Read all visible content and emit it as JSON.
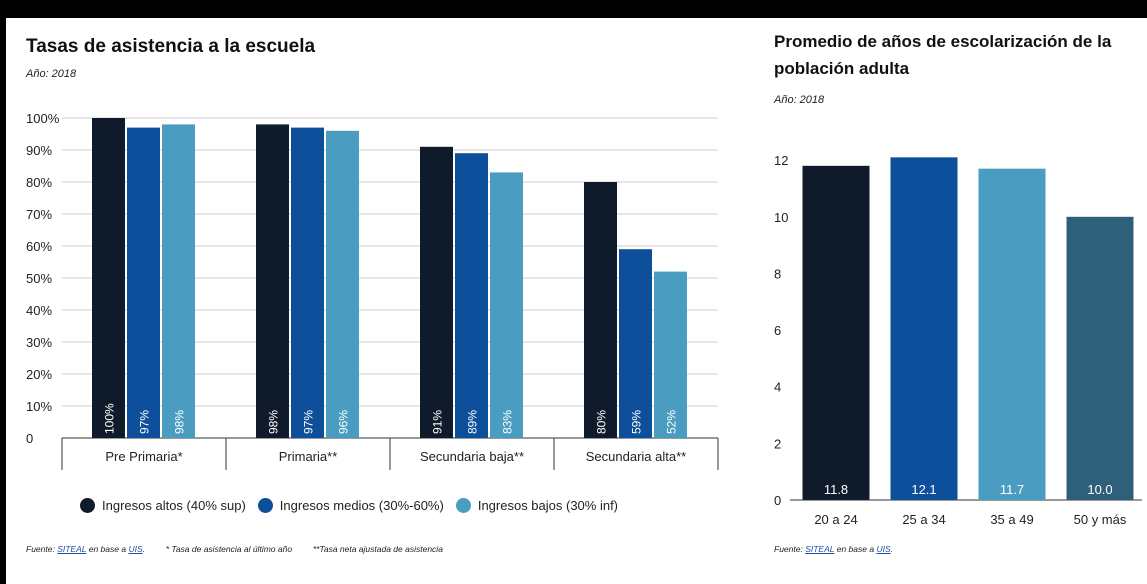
{
  "colors": {
    "high": "#0f1a2b",
    "mid": "#0d4f9a",
    "low": "#4a9cc0",
    "older": "#2e6079",
    "grid": "#cccccc",
    "axis": "#333333"
  },
  "left_chart": {
    "title": "Tasas de asistencia a la escuela",
    "year": "Año: 2018",
    "legend": [
      {
        "label": "Ingresos altos (40% sup)",
        "color_key": "high"
      },
      {
        "label": "Ingresos medios (30%-60%)",
        "color_key": "mid"
      },
      {
        "label": "Ingresos bajos (30% inf)",
        "color_key": "low"
      }
    ],
    "footer": {
      "source_prefix": "Fuente:",
      "source_link1": "SITEAL",
      "source_mid": "en base a",
      "source_link2": "UIS",
      "note1": "* Tasa de asistencia al último año",
      "note2": "**Tasa neta ajustada de asistencia"
    }
  },
  "right_chart": {
    "title": "Promedio de años de escolarización de la población adulta",
    "year": "Año: 2018",
    "footer": {
      "source_prefix": "Fuente:",
      "source_link1": "SITEAL",
      "source_mid": "en base a",
      "source_link2": "UIS"
    }
  },
  "chart_data": [
    {
      "type": "bar",
      "categories": [
        "Pre Primaria*",
        "Primaria**",
        "Secundaria baja**",
        "Secundaria alta**"
      ],
      "series": [
        {
          "name": "Ingresos altos (40% sup)",
          "values": [
            100,
            98,
            91,
            80
          ],
          "labels": [
            "100%",
            "98%",
            "91%",
            "80%"
          ]
        },
        {
          "name": "Ingresos medios (30%-60%)",
          "values": [
            97,
            97,
            89,
            59
          ],
          "labels": [
            "97%",
            "97%",
            "89%",
            "59%"
          ]
        },
        {
          "name": "Ingresos bajos (30% inf)",
          "values": [
            98,
            96,
            83,
            52
          ],
          "labels": [
            "98%",
            "96%",
            "83%",
            "52%"
          ]
        }
      ],
      "yticks": [
        "100%",
        "90%",
        "80%",
        "70%",
        "60%",
        "50%",
        "40%",
        "30%",
        "20%",
        "10%",
        "0"
      ],
      "ylim": [
        0,
        100
      ],
      "grid": true,
      "legend_position": "bottom"
    },
    {
      "type": "bar",
      "categories": [
        "20 a 24",
        "25 a 34",
        "35 a 49",
        "50 y más"
      ],
      "values": [
        11.8,
        12.1,
        11.7,
        10.0
      ],
      "labels": [
        "11.8",
        "12.1",
        "11.7",
        "10.0"
      ],
      "yticks": [
        "12",
        "10",
        "8",
        "6",
        "4",
        "2",
        "0"
      ],
      "ylim": [
        0,
        12.5
      ],
      "grid": false
    }
  ]
}
